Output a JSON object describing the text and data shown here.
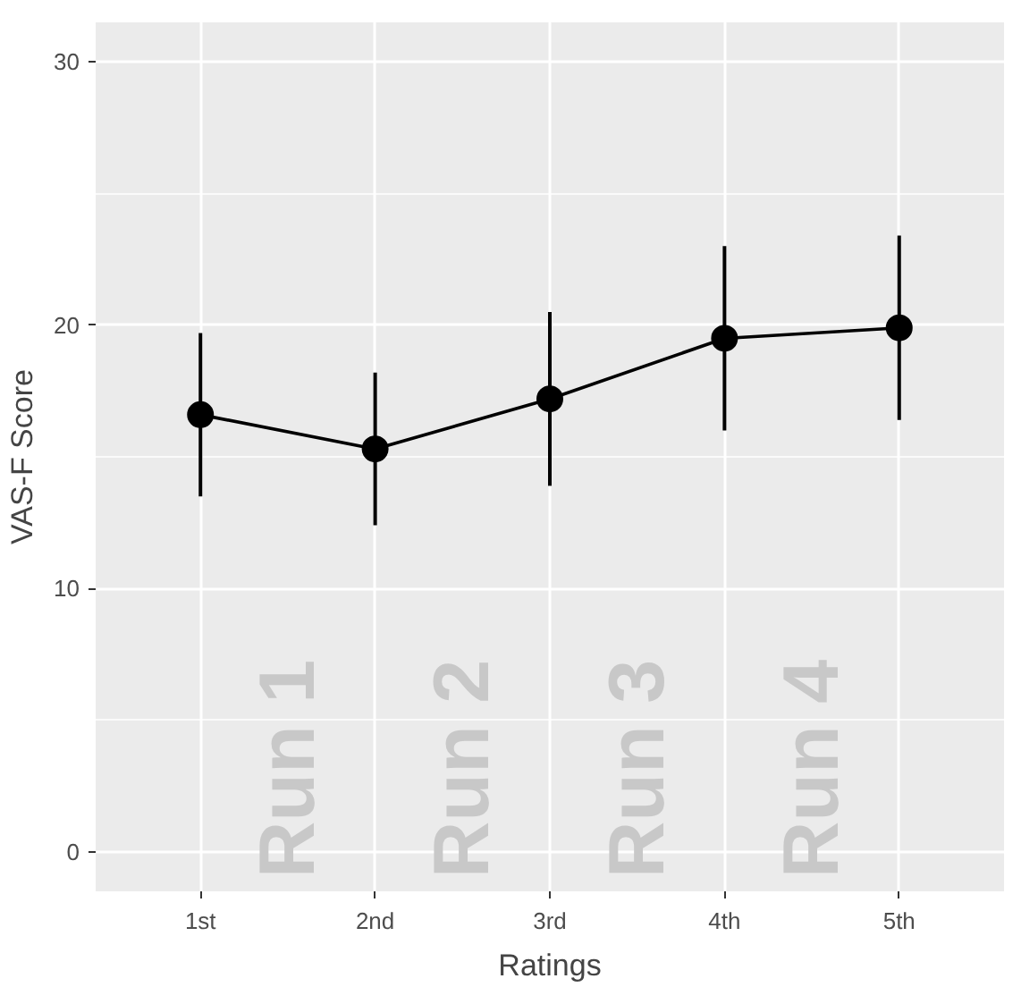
{
  "chart_data": {
    "type": "line",
    "xlabel": "Ratings",
    "ylabel": "VAS-F Score",
    "categories": [
      "1st",
      "2nd",
      "3rd",
      "4th",
      "5th"
    ],
    "series": [
      {
        "color": "#000000",
        "values": [
          16.6,
          15.3,
          17.2,
          19.5,
          19.9
        ],
        "errors": [
          3.1,
          2.9,
          3.3,
          3.5,
          3.5
        ]
      }
    ],
    "marker": "circle",
    "ylim": [
      -1.5,
      31.5
    ],
    "yticks": [
      0,
      10,
      20,
      30
    ],
    "grid": true,
    "annotations": [
      "Run 1",
      "Run 2",
      "Run 3",
      "Run 4"
    ]
  }
}
